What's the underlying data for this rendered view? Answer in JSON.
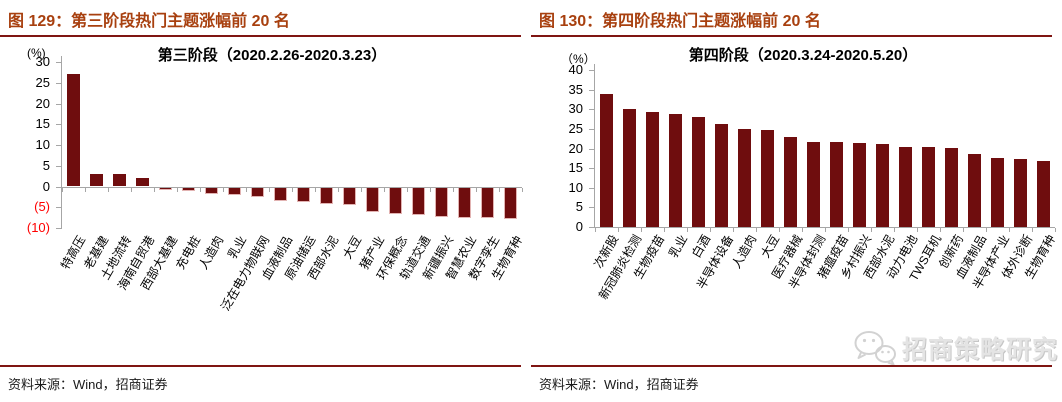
{
  "page": {
    "background": "#ffffff",
    "accent_rule_color": "#7f1512",
    "header_text_color": "#a8400f",
    "bar_color": "#6f0d0e",
    "axis_color": "#a6a6a6",
    "negative_tick_color": "#ff0000"
  },
  "panels": [
    {
      "id": "figure-129",
      "header": "图 129：第三阶段热门主题涨幅前 20 名",
      "source": "资料来源：Wind，招商证券"
    },
    {
      "id": "figure-130",
      "header": "图 130：第四阶段热门主题涨幅前 20 名",
      "source": "资料来源：Wind，招商证券",
      "watermark": "招商策略研究"
    }
  ],
  "chart_data": [
    {
      "type": "bar",
      "title": "第三阶段（2020.2.26-2020.3.23）",
      "unit": "(%)",
      "xlabel": "",
      "ylabel": "%",
      "ylim": [
        -10,
        30
      ],
      "ytick_step": 5,
      "grid": false,
      "legend": false,
      "bar_color": "#6f0d0e",
      "yticks": [
        [
          30,
          "30"
        ],
        [
          25,
          "25"
        ],
        [
          20,
          "20"
        ],
        [
          15,
          "15"
        ],
        [
          10,
          "10"
        ],
        [
          5,
          "5"
        ],
        [
          0,
          "0"
        ],
        [
          -5,
          "(5)"
        ],
        [
          -10,
          "(10)"
        ]
      ],
      "categories": [
        "特高压",
        "老基建",
        "土地流转",
        "海南自贸港",
        "西部大基建",
        "充电桩",
        "人造肉",
        "乳业",
        "泛在电力物联网",
        "血液制品",
        "原油储运",
        "西部水泥",
        "大豆",
        "猪产业",
        "环保概念",
        "轨道交通",
        "新疆振兴",
        "智慧农业",
        "数字孪生",
        "生物育种"
      ],
      "values": [
        27,
        3,
        2.9,
        2,
        -0.5,
        -0.8,
        -1.5,
        -1.9,
        -2.3,
        -3.2,
        -3.6,
        -4.0,
        -4.3,
        -6.0,
        -6.3,
        -6.7,
        -7.0,
        -7.3,
        -7.4,
        -7.6
      ]
    },
    {
      "type": "bar",
      "title": "第四阶段（2020.3.24-2020.5.20）",
      "unit": "（%）",
      "xlabel": "",
      "ylabel": "%",
      "ylim": [
        0,
        40
      ],
      "ytick_step": 5,
      "grid": false,
      "legend": false,
      "bar_color": "#6f0d0e",
      "yticks": [
        [
          40,
          "40"
        ],
        [
          35,
          "35"
        ],
        [
          30,
          "30"
        ],
        [
          25,
          "25"
        ],
        [
          20,
          "20"
        ],
        [
          15,
          "15"
        ],
        [
          10,
          "10"
        ],
        [
          5,
          "5"
        ],
        [
          0,
          "0"
        ]
      ],
      "categories": [
        "次新股",
        "新冠肺炎检测",
        "生物疫苗",
        "乳业",
        "白酒",
        "半导体设备",
        "人造肉",
        "大豆",
        "医疗器械",
        "半导体封测",
        "猪瘟疫苗",
        "乡村振兴",
        "西部水泥",
        "动力电池",
        "TWS耳机",
        "创新药",
        "血液制品",
        "半导体产业",
        "体外诊断",
        "生物育种"
      ],
      "values": [
        34,
        30,
        29.3,
        28.7,
        28,
        26.3,
        25,
        24.6,
        23,
        21.7,
        21.7,
        21.5,
        21.2,
        20.3,
        20.3,
        20.2,
        18.5,
        17.7,
        17.2,
        16.7
      ]
    }
  ]
}
